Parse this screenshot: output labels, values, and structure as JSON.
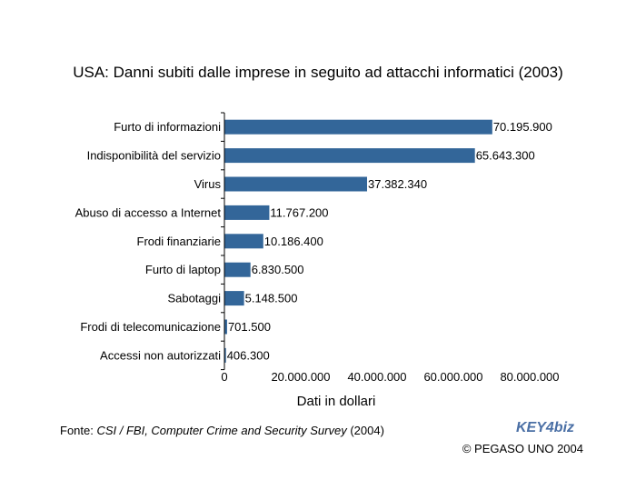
{
  "chart_data": {
    "type": "bar",
    "orientation": "horizontal",
    "title": "USA: Danni subiti dalle imprese in seguito ad attacchi informatici (2003)",
    "xlabel": "Dati in dollari",
    "ylabel": "",
    "categories": [
      "Furto di informazioni",
      "Indisponibilità del servizio",
      "Virus",
      "Abuso di accesso a Internet",
      "Frodi finanziarie",
      "Furto di laptop",
      "Sabotaggi",
      "Frodi di telecomunicazione",
      "Accessi non autorizzati"
    ],
    "values": [
      70195900,
      65643300,
      37382340,
      11767200,
      10186400,
      6830500,
      5148500,
      701500,
      406300
    ],
    "value_labels": [
      "70.195.900",
      "65.643.300",
      "37.382.340",
      "11.767.200",
      "10.186.400",
      "6.830.500",
      "5.148.500",
      "701.500",
      "406.300"
    ],
    "xlim": [
      0,
      80000000
    ],
    "x_ticks": [
      0,
      20000000,
      40000000,
      60000000,
      80000000
    ],
    "x_tick_labels": [
      "0",
      "20.000.000",
      "40.000.000",
      "60.000.000",
      "80.000.000"
    ],
    "bar_color": "#336699",
    "grid": false,
    "legend": "none"
  },
  "footer": {
    "source_prefix": "Fonte: ",
    "source_title": "CSI / FBI, Computer Crime and Security Survey",
    "source_suffix": " (2004)",
    "copyright": "© PEGASO UNO 2004",
    "logo_text": "KEY4biz"
  }
}
